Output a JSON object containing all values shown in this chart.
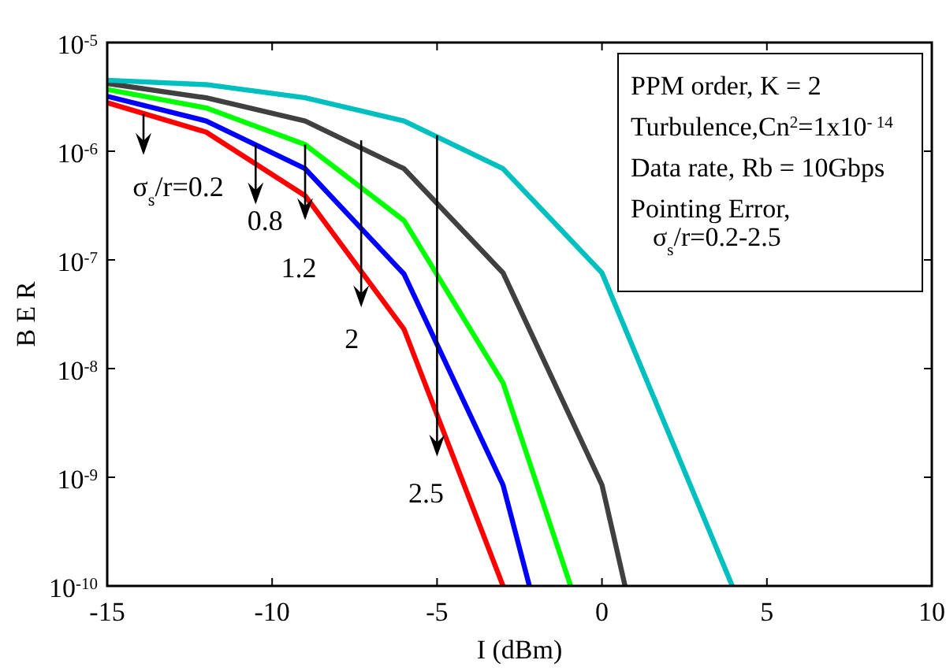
{
  "chart_data": {
    "type": "line",
    "xlabel": "I (dBm)",
    "ylabel": "B E R",
    "log": "y",
    "xlim": [
      -15,
      10
    ],
    "xticks": [
      -15,
      -10,
      -5,
      0,
      5,
      10
    ],
    "ylim": [
      1e-10,
      1e-05
    ],
    "yticks": [
      {
        "value": 1e-10,
        "label": "10$^{-10}$"
      },
      {
        "value": 1e-09,
        "label": "10$^{-9}$"
      },
      {
        "value": 1e-08,
        "label": "10$^{-8}$"
      },
      {
        "value": 1e-07,
        "label": "10$^{-7}$"
      },
      {
        "value": 1e-06,
        "label": "10$^{-6}$"
      },
      {
        "value": 1e-05,
        "label": "10$^{-5}$"
      }
    ],
    "grid": false,
    "marker": "none",
    "line_style": "solid",
    "series": [
      {
        "color": "#ff0000",
        "x": [
          -15,
          -12,
          -9,
          -6,
          -3
        ],
        "values": [
          2.8e-06,
          1.5e-06,
          3.9e-07,
          2.3e-08,
          1e-10
        ]
      },
      {
        "color": "#0000ff",
        "x": [
          -15,
          -12,
          -9,
          -6,
          -3,
          -2.2
        ],
        "values": [
          3.2e-06,
          1.9e-06,
          6.9e-07,
          7.4e-08,
          8.5e-10,
          1e-10
        ]
      },
      {
        "color": "#00ff00",
        "x": [
          -15,
          -12,
          -9,
          -6,
          -3,
          -0.95
        ],
        "values": [
          3.7e-06,
          2.5e-06,
          1.15e-06,
          2.3e-07,
          7.4e-09,
          1e-10
        ]
      },
      {
        "color": "#404040",
        "x": [
          -15,
          -12,
          -9,
          -6,
          -3,
          0,
          0.7
        ],
        "values": [
          4.2e-06,
          3.1e-06,
          1.9e-06,
          6.9e-07,
          7.6e-08,
          8.5e-10,
          1e-10
        ]
      },
      {
        "color": "#00bfbf",
        "x": [
          -15,
          -12,
          -9,
          -6,
          -3,
          0,
          3.95
        ],
        "values": [
          4.5e-06,
          4.1e-06,
          3.1e-06,
          1.9e-06,
          6.9e-07,
          7.6e-08,
          1e-10
        ]
      }
    ],
    "annotations": [
      {
        "text": "σ$_{s}$/r=0.2",
        "x": -13.9,
        "y": 2.2e-06
      },
      {
        "text": "0.8",
        "x": -10.5,
        "y": 1.15e-06
      },
      {
        "text": "1.2",
        "x": -9.0,
        "y": 1.15e-06
      },
      {
        "text": "2",
        "x": -7.3,
        "y": 1.26e-06
      },
      {
        "text": "2.5",
        "x": -5.0,
        "y": 1.4e-06
      },
      "PPM order, K = 2",
      "Turbulence,Cn$^{2}$=1x10$^{- 14}$",
      "Data rate, Rb = 10Gbps",
      "Pointing Error,",
      "σ$_{s}$/r=0.2-2.5"
    ]
  }
}
